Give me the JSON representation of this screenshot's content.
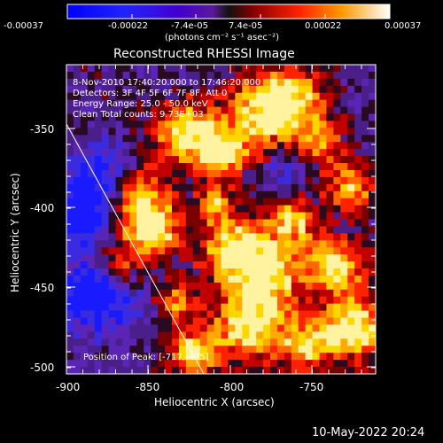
{
  "colorbar": {
    "ticks": [
      "-0.00037",
      "-0.00022",
      "-7.4e-05",
      "7.4e-05",
      "0.00022",
      "0.00037"
    ],
    "unit_label": "(photons cm⁻² s⁻¹ asec⁻²)"
  },
  "image": {
    "title": "Reconstructed RHESSI Image",
    "info_lines": [
      "8-Nov-2010 17:40:20.000 to 17:46:20.000",
      "Detectors: 3F 4F 5F 6F 7F 8F, Att 0",
      "Energy Range: 25.0 - 50.0 keV",
      "Clean     Total counts: 9.73E+03"
    ],
    "position_label": "Position of Peak: [-717,-485]"
  },
  "axes": {
    "xlabel": "Heliocentric X (arcsec)",
    "ylabel": "Heliocentric Y (arcsec)",
    "xticks": [
      "-900",
      "-850",
      "-800",
      "-750"
    ],
    "yticks": [
      "-350",
      "-400",
      "-450",
      "-500"
    ],
    "xlim": [
      -900,
      -720
    ],
    "ylim": [
      -505,
      -335
    ]
  },
  "footer": {
    "date": "10-May-2022 20:24"
  }
}
